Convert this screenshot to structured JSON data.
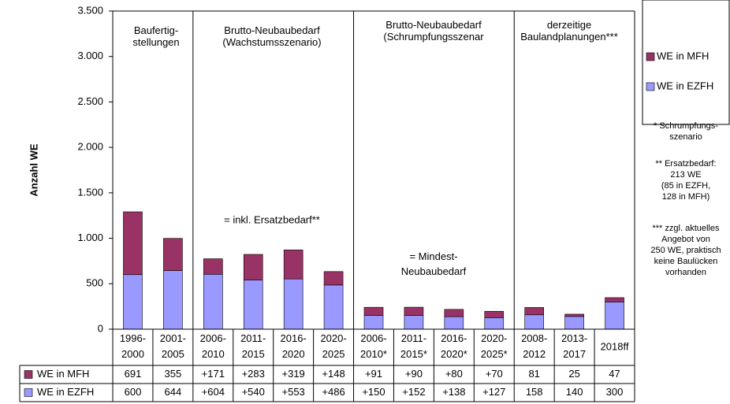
{
  "chart_data": {
    "type": "stacked-bar",
    "y_label": "Anzahl WE",
    "categories": [
      "1996-\n2000",
      "2001-\n2005",
      "2006-\n2010",
      "2011-\n2015",
      "2016-\n2020",
      "2020-\n2025",
      "2006-\n2010*",
      "2011-\n2015*",
      "2016-\n2020*",
      "2020-\n2025*",
      "2008-\n2012",
      "2013-\n2017",
      "2018ff"
    ],
    "series": [
      {
        "name": "WE in EZFH",
        "color": "#9999ff",
        "values": [
          600,
          644,
          604,
          540,
          553,
          486,
          150,
          152,
          138,
          127,
          158,
          140,
          300
        ],
        "value_labels": [
          "600",
          "644",
          "+604",
          "+540",
          "+553",
          "+486",
          "+150",
          "+152",
          "+138",
          "+127",
          "158",
          "140",
          "300"
        ]
      },
      {
        "name": "WE in MFH",
        "color": "#993366",
        "values": [
          691,
          355,
          171,
          283,
          319,
          148,
          91,
          90,
          80,
          70,
          81,
          25,
          47
        ],
        "value_labels": [
          "691",
          "355",
          "+171",
          "+283",
          "+319",
          "+148",
          "+91",
          "+90",
          "+80",
          "+70",
          "81",
          "25",
          "47"
        ]
      }
    ],
    "ylim": [
      0,
      3500
    ],
    "yticks": [
      0,
      500,
      {
        "value": 1000,
        "label": "1.000"
      },
      {
        "value": 1500,
        "label": "1.500"
      },
      {
        "value": 2000,
        "label": "2.000"
      },
      {
        "value": 2500,
        "label": "2.500"
      },
      {
        "value": 3000,
        "label": "3.000"
      },
      {
        "value": 3500,
        "label": "3.500"
      }
    ],
    "groups": [
      "Baufertig-\nstellungen",
      "Brutto-Neubaubedarf\n(Wachstumsszenario)",
      "Brutto-Neubaubedarf\n(Schrumpfungsszenar",
      "derzeitige\nBaulandplanungen***"
    ],
    "annotations": [
      "= inkl. Ersatzbedarf**",
      "= Mindest-\nNeubaubedarf"
    ],
    "notes": [
      "* Schrumpfungs-\nszenario",
      "** Ersatzbedarf:\n213 WE\n(85 in EZFH,\n128 in MFH)",
      "*** zzgl. aktuelles\nAngebot von\n250 WE, praktisch\nkeine Baulücken\nvorhanden"
    ]
  }
}
